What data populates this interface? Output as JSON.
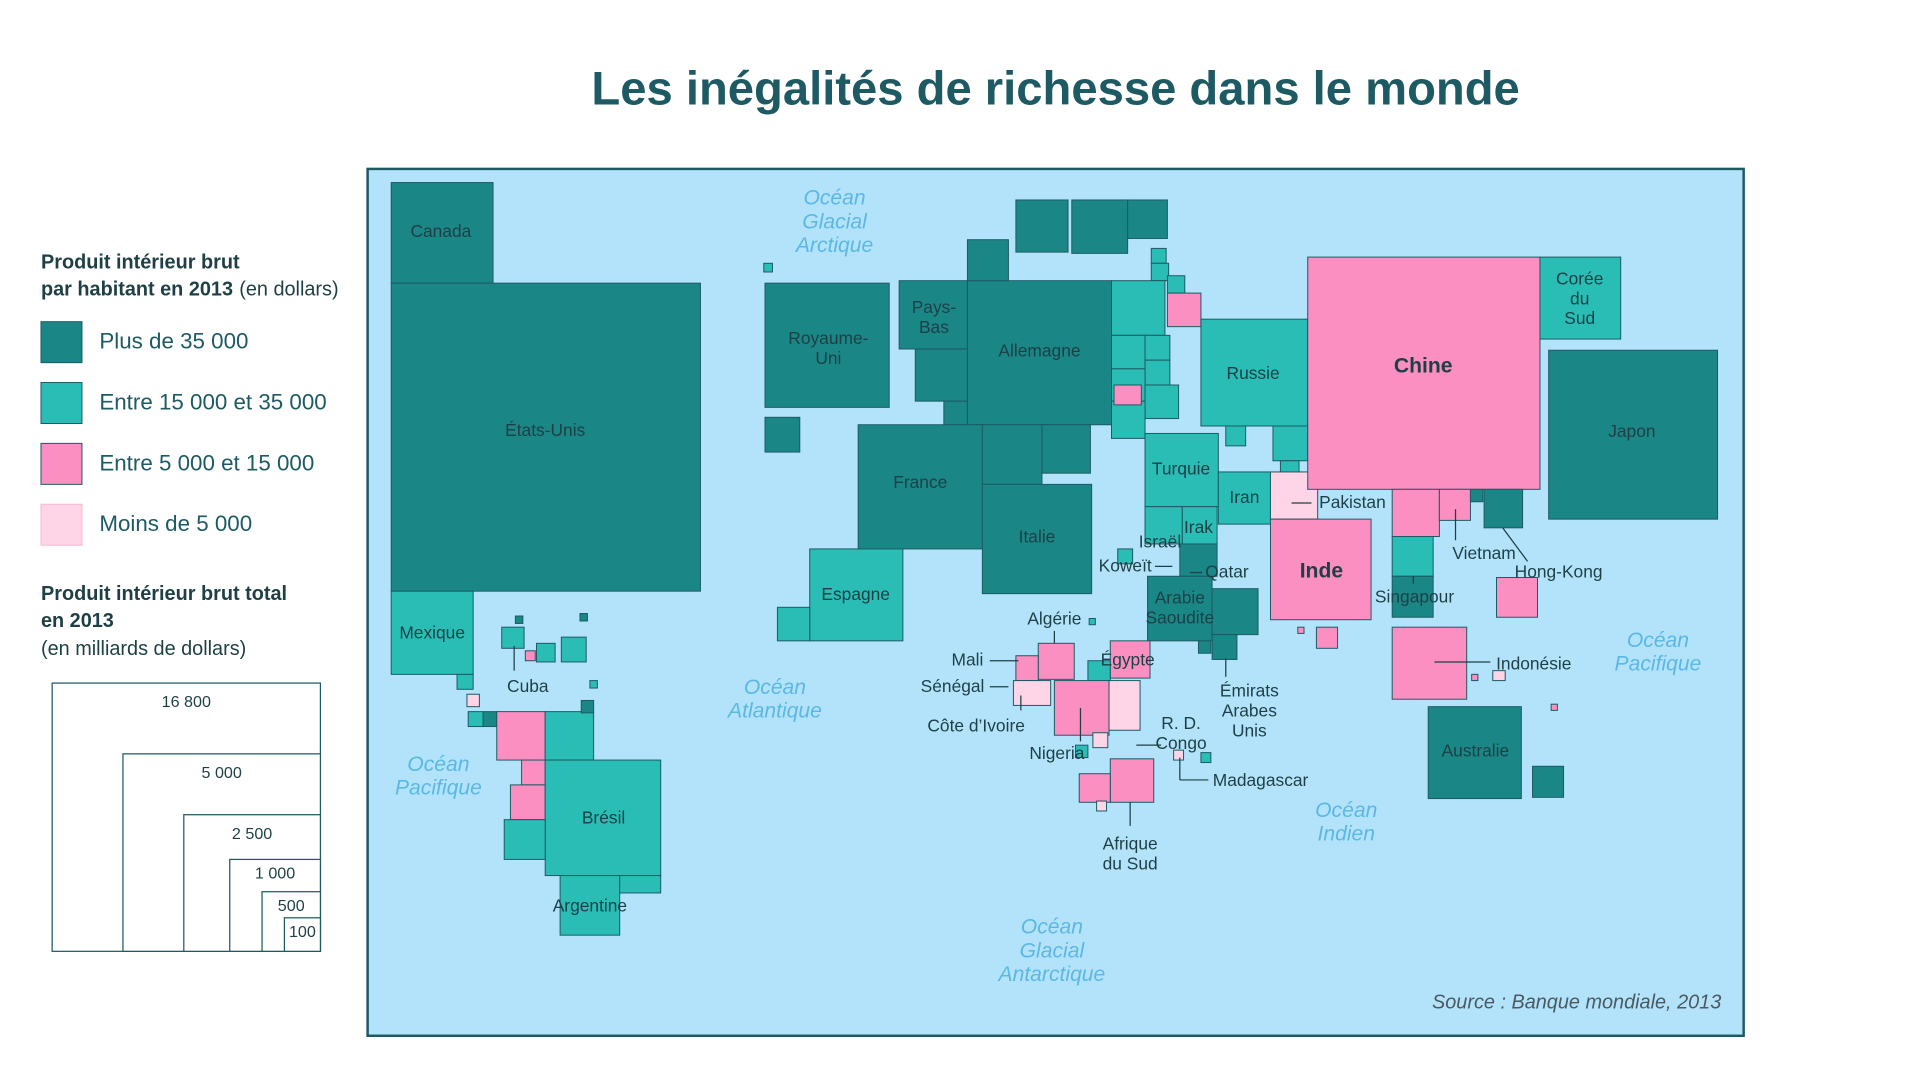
{
  "title": "Les inégalités de richesse dans le monde",
  "legend": {
    "per_capita": {
      "title_lines": [
        "Produit intérieur brut",
        "par habitant en 2013"
      ],
      "unit": "(en dollars)",
      "items": [
        "Plus de 35 000",
        "Entre 15 000 et 35 000",
        "Entre 5 000 et 15 000",
        "Moins de 5 000"
      ]
    },
    "total": {
      "title_lines": [
        "Produit intérieur brut total",
        "en 2013"
      ],
      "unit": "(en milliards de dollars)",
      "scale": [
        "16 800",
        "5 000",
        "2 500",
        "1 000",
        "500",
        "100"
      ]
    }
  },
  "countries": [
    [
      "Canada"
    ],
    [
      "États-Unis"
    ],
    [
      "Mexique"
    ],
    [
      "Cuba"
    ],
    [
      "Brésil"
    ],
    [
      "Argentine"
    ],
    [
      "Royaume-",
      "Uni"
    ],
    [
      "Pays-",
      "Bas"
    ],
    [
      "Allemagne"
    ],
    [
      "France"
    ],
    [
      "Italie"
    ],
    [
      "Espagne"
    ],
    [
      "Russie"
    ],
    [
      "Turquie"
    ],
    [
      "Iran"
    ],
    [
      "Pakistan"
    ],
    [
      "Israël"
    ],
    [
      "Irak"
    ],
    [
      "Koweït"
    ],
    [
      "Qatar"
    ],
    [
      "Arabie",
      "Saoudite"
    ],
    [
      "Émirats",
      "Arabes",
      "Unis"
    ],
    [
      "Chine"
    ],
    [
      "Corée",
      "du",
      "Sud"
    ],
    [
      "Japon"
    ],
    [
      "Inde"
    ],
    [
      "Singapour"
    ],
    [
      "Vietnam"
    ],
    [
      "Hong-Kong"
    ],
    [
      "Indonésie"
    ],
    [
      "Australie"
    ],
    [
      "Algérie"
    ],
    [
      "Égypte"
    ],
    [
      "Mali"
    ],
    [
      "Sénégal"
    ],
    [
      "Côte d’Ivoire"
    ],
    [
      "Nigeria"
    ],
    [
      "R. D.",
      "Congo"
    ],
    [
      "Madagascar"
    ],
    [
      "Afrique",
      "du Sud"
    ]
  ],
  "oceans": [
    [
      "Océan",
      "Glacial",
      "Arctique"
    ],
    [
      "Océan",
      "Atlantique"
    ],
    [
      "Océan",
      "Pacifique"
    ],
    [
      "Océan",
      "Pacifique"
    ],
    [
      "Océan",
      "Indien"
    ],
    [
      "Océan",
      "Glacial",
      "Antarctique"
    ]
  ],
  "source": "Source : Banque mondiale, 2013"
}
